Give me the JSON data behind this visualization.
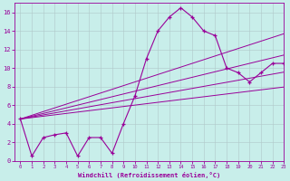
{
  "xlabel": "Windchill (Refroidissement éolien,°C)",
  "background_color": "#c8eeea",
  "line_color": "#990099",
  "grid_color": "#b0c8c8",
  "x_data": [
    0,
    1,
    2,
    3,
    4,
    5,
    6,
    7,
    8,
    9,
    10,
    11,
    12,
    13,
    14,
    15,
    16,
    17,
    18,
    19,
    20,
    21,
    22,
    23
  ],
  "y_main": [
    4.5,
    0.5,
    2.5,
    2.8,
    3.0,
    0.5,
    2.5,
    2.5,
    0.8,
    4.0,
    7.0,
    11.0,
    14.0,
    15.5,
    16.5,
    15.5,
    14.0,
    13.5,
    10.0,
    9.5,
    8.5,
    9.5,
    10.5,
    10.5
  ],
  "y_lin1": [
    4.5,
    4.65,
    4.8,
    4.95,
    5.1,
    5.25,
    5.4,
    5.55,
    5.7,
    5.85,
    6.0,
    6.15,
    6.3,
    6.45,
    6.6,
    6.75,
    6.9,
    7.05,
    7.2,
    7.35,
    7.5,
    7.65,
    7.8,
    7.95
  ],
  "y_lin2": [
    4.5,
    4.72,
    4.94,
    5.16,
    5.38,
    5.6,
    5.82,
    6.04,
    6.26,
    6.48,
    6.7,
    6.92,
    7.14,
    7.36,
    7.58,
    7.8,
    8.02,
    8.24,
    8.46,
    8.68,
    8.9,
    9.12,
    9.34,
    9.56
  ],
  "y_lin3": [
    4.5,
    4.8,
    5.1,
    5.4,
    5.7,
    6.0,
    6.3,
    6.6,
    6.9,
    7.2,
    7.5,
    7.8,
    8.1,
    8.4,
    8.7,
    9.0,
    9.3,
    9.6,
    9.9,
    10.2,
    10.5,
    10.8,
    11.1,
    11.4
  ],
  "y_lin4": [
    4.5,
    4.9,
    5.3,
    5.7,
    6.1,
    6.5,
    6.9,
    7.3,
    7.7,
    8.1,
    8.5,
    8.9,
    9.3,
    9.7,
    10.1,
    10.5,
    10.9,
    11.3,
    11.7,
    12.1,
    12.5,
    12.9,
    13.3,
    13.7
  ],
  "ylim": [
    0,
    17
  ],
  "xlim": [
    -0.5,
    23
  ],
  "yticks": [
    0,
    2,
    4,
    6,
    8,
    10,
    12,
    14,
    16
  ],
  "xticks": [
    0,
    1,
    2,
    3,
    4,
    5,
    6,
    7,
    8,
    9,
    10,
    11,
    12,
    13,
    14,
    15,
    16,
    17,
    18,
    19,
    20,
    21,
    22,
    23
  ]
}
